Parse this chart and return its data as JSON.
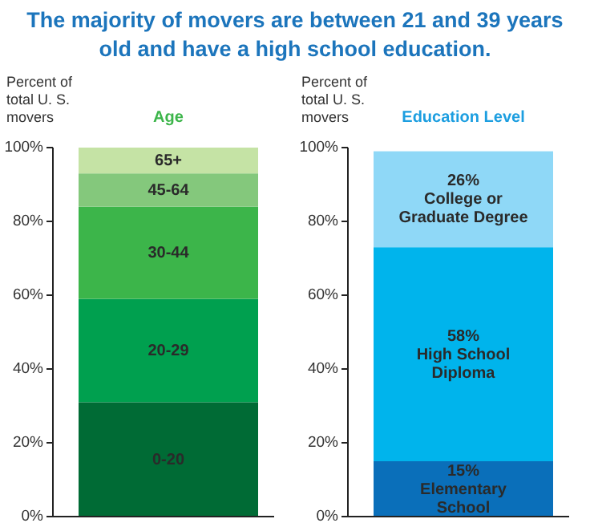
{
  "chart_data": [
    {
      "type": "bar",
      "title": "The majority of movers are between 21 and 39 years old and have a high school education.",
      "subtitle": "Age",
      "ylabel": "Percent of total U. S. movers",
      "stacked": true,
      "categories": [
        null
      ],
      "ylim": [
        0,
        100
      ],
      "yticks": [
        {
          "value": 0,
          "label": "0%"
        },
        {
          "value": 20,
          "label": "20%"
        },
        {
          "value": 40,
          "label": "40%"
        },
        {
          "value": 60,
          "label": "60%"
        },
        {
          "value": 80,
          "label": "80%"
        },
        {
          "value": 100,
          "label": "100%"
        }
      ],
      "series": [
        {
          "name": "0-20",
          "color": "#006b35",
          "values": [
            31
          ]
        },
        {
          "name": "20-29",
          "color": "#00a04f",
          "values": [
            28
          ]
        },
        {
          "name": "30-44",
          "color": "#3cb54a",
          "values": [
            25
          ]
        },
        {
          "name": "45-64",
          "color": "#84c87c",
          "values": [
            9
          ]
        },
        {
          "name": "65+",
          "color": "#c5e3a5",
          "values": [
            7
          ]
        }
      ]
    },
    {
      "type": "bar",
      "title": "Education Level",
      "ylabel": "Percent of total U. S. movers",
      "stacked": true,
      "categories": [
        null
      ],
      "ylim": [
        0,
        100
      ],
      "yticks": [
        {
          "value": 0,
          "label": "0%"
        },
        {
          "value": 20,
          "label": "20%"
        },
        {
          "value": 40,
          "label": "40%"
        },
        {
          "value": 60,
          "label": "60%"
        },
        {
          "value": 80,
          "label": "80%"
        },
        {
          "value": 100,
          "label": "100%"
        }
      ],
      "series": [
        {
          "name": "Elementary School",
          "color": "#0a6fba",
          "values": [
            15
          ],
          "value_labels": [
            "15%"
          ]
        },
        {
          "name": "High School Diploma",
          "color": "#00b4ec",
          "values": [
            58
          ],
          "value_labels": [
            "58%"
          ]
        },
        {
          "name": "College or Graduate Degree",
          "color": "#8fd8f7",
          "values": [
            26
          ],
          "value_labels": [
            "26%"
          ]
        }
      ]
    }
  ]
}
